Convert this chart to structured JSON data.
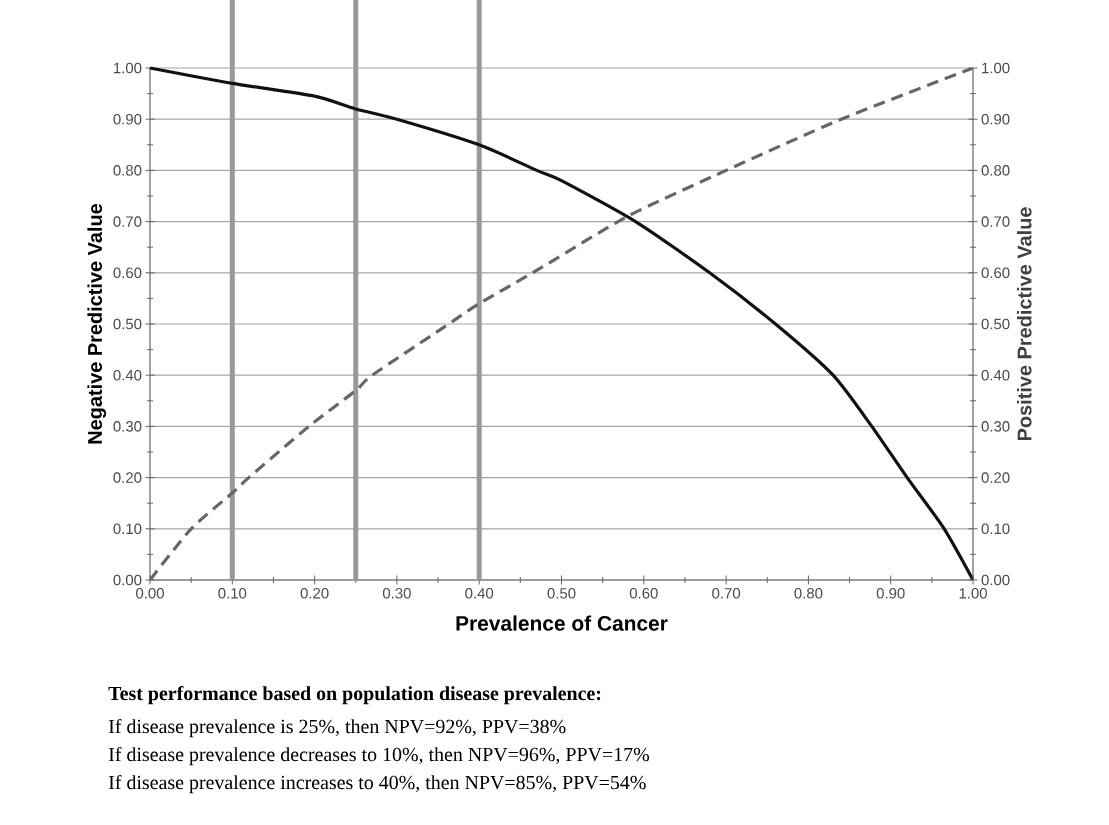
{
  "chart_data": {
    "type": "line",
    "xlabel": "Prevalence of Cancer",
    "ylabel": "Negative Predictive Value",
    "y2label": "Positive Predictive Value",
    "series": [
      {
        "color": "#111111",
        "line_style": "solid",
        "x": [
          0,
          0.1,
          0.2,
          0.25,
          0.3,
          0.4,
          0.47,
          0.5,
          0.59,
          0.68,
          0.76,
          0.83,
          0.877,
          0.92,
          0.965,
          1
        ],
        "values": [
          1,
          0.97,
          0.945,
          0.92,
          0.9,
          0.85,
          0.8,
          0.78,
          0.7,
          0.6,
          0.5,
          0.4,
          0.3,
          0.2,
          0.1,
          0
        ]
      },
      {
        "color": "#666666",
        "line_style": "dashed",
        "axis": "y2",
        "x": [
          0,
          0.05,
          0.1,
          0.12,
          0.193,
          0.25,
          0.27,
          0.363,
          0.4,
          0.465,
          0.58,
          0.7,
          0.84,
          1
        ],
        "values": [
          0,
          0.1,
          0.17,
          0.2,
          0.3,
          0.37,
          0.4,
          0.5,
          0.54,
          0.6,
          0.71,
          0.8,
          0.9,
          1
        ]
      }
    ],
    "xlim": [
      0,
      1
    ],
    "ylim": [
      0,
      1
    ],
    "y2lim": [
      0,
      1
    ],
    "xticks": [
      {
        "value": 0,
        "label": "0.00"
      },
      {
        "value": 0.1,
        "label": "0.10"
      },
      {
        "value": 0.2,
        "label": "0.20"
      },
      {
        "value": 0.3,
        "label": "0.30"
      },
      {
        "value": 0.4,
        "label": "0.40"
      },
      {
        "value": 0.5,
        "label": "0.50"
      },
      {
        "value": 0.6,
        "label": "0.60"
      },
      {
        "value": 0.7,
        "label": "0.70"
      },
      {
        "value": 0.8,
        "label": "0.80"
      },
      {
        "value": 0.9,
        "label": "0.90"
      },
      {
        "value": 1,
        "label": "1.00"
      }
    ],
    "yticks": [
      {
        "value": 0,
        "label": "0.00"
      },
      {
        "value": 0.1,
        "label": "0.10"
      },
      {
        "value": 0.2,
        "label": "0.20"
      },
      {
        "value": 0.3,
        "label": "0.30"
      },
      {
        "value": 0.4,
        "label": "0.40"
      },
      {
        "value": 0.5,
        "label": "0.50"
      },
      {
        "value": 0.6,
        "label": "0.60"
      },
      {
        "value": 0.7,
        "label": "0.70"
      },
      {
        "value": 0.8,
        "label": "0.80"
      },
      {
        "value": 0.9,
        "label": "0.90"
      },
      {
        "value": 1,
        "label": "1.00"
      }
    ],
    "y2ticks": [
      {
        "value": 0,
        "label": "0.00"
      },
      {
        "value": 0.1,
        "label": "0.10"
      },
      {
        "value": 0.2,
        "label": "0.20"
      },
      {
        "value": 0.3,
        "label": "0.30"
      },
      {
        "value": 0.4,
        "label": "0.40"
      },
      {
        "value": 0.5,
        "label": "0.50"
      },
      {
        "value": 0.6,
        "label": "0.60"
      },
      {
        "value": 0.7,
        "label": "0.70"
      },
      {
        "value": 0.8,
        "label": "0.80"
      },
      {
        "value": 0.9,
        "label": "0.90"
      },
      {
        "value": 1,
        "label": "1.00"
      }
    ],
    "grid": "y",
    "ref_lines": [
      {
        "axis": "x",
        "value": 0.1,
        "color": "#999999"
      },
      {
        "axis": "x",
        "value": 0.25,
        "color": "#999999"
      },
      {
        "axis": "x",
        "value": 0.4,
        "color": "#999999"
      }
    ],
    "annotations": [
      "Test performance based on population disease prevalence:",
      "If disease prevalence is 25%, then NPV=92%, PPV=38%",
      "If disease prevalence decreases to 10%, then NPV=96%, PPV=17%",
      "If disease prevalence increases to 40%, then NPV=85%, PPV=54%"
    ]
  }
}
